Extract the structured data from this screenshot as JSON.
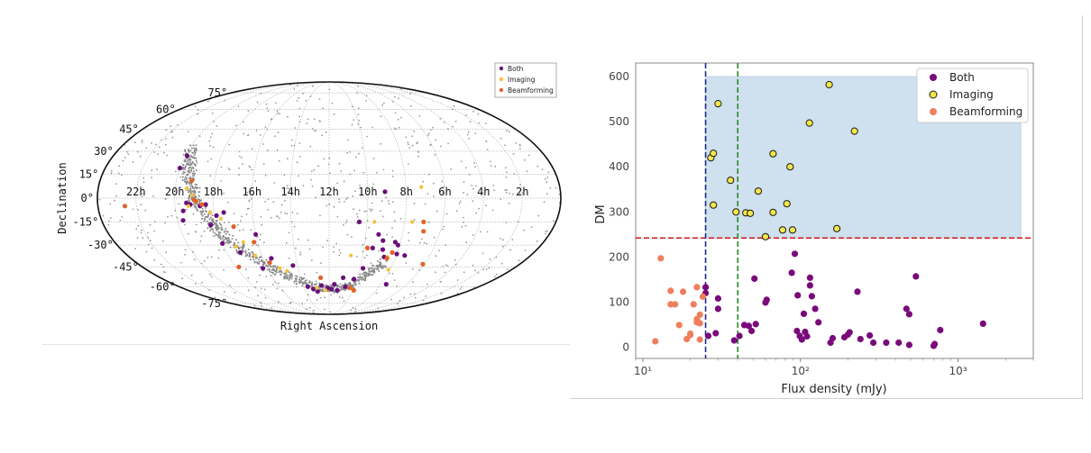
{
  "chart_data": [
    {
      "type": "scatter",
      "projection": "mollweide",
      "xlabel": "Right Ascension",
      "ylabel": "Declination",
      "ra_tick_labels": [
        "22h",
        "20h",
        "18h",
        "16h",
        "14h",
        "12h",
        "10h",
        "8h",
        "6h",
        "4h",
        "2h"
      ],
      "dec_tick_labels": [
        "75°",
        "60°",
        "45°",
        "30°",
        "15°",
        "0°",
        "-15°",
        "-30°",
        "-45°",
        "-60°",
        "-75°"
      ],
      "legend": {
        "placement": "top-right",
        "entries": [
          "Both",
          "Imaging",
          "Beamforming"
        ]
      },
      "colors": {
        "Both": "#6a0f7a",
        "Imaging": "#f2c23a",
        "Beamforming": "#e0622a",
        "background": "#9a9a9a"
      },
      "series": [
        {
          "name": "Both",
          "points": [
            [
              19.9,
              27
            ],
            [
              20.0,
              19
            ],
            [
              19.4,
              -3
            ],
            [
              19.6,
              -8
            ],
            [
              18.4,
              -4
            ],
            [
              18.3,
              -17
            ],
            [
              17.9,
              -11
            ],
            [
              17.5,
              -9
            ],
            [
              17.2,
              -35
            ],
            [
              16.0,
              -23
            ],
            [
              15.5,
              -39
            ],
            [
              14.3,
              -44
            ],
            [
              13.7,
              -60
            ],
            [
              13.0,
              -64
            ],
            [
              11.6,
              -58
            ],
            [
              11.3,
              -63
            ],
            [
              10.7,
              -60
            ],
            [
              10.2,
              -54
            ],
            [
              9.8,
              -46
            ],
            [
              9.5,
              -32
            ],
            [
              9.3,
              -23
            ],
            [
              8.9,
              -33
            ],
            [
              8.7,
              -38
            ],
            [
              8.1,
              -30
            ],
            [
              8.0,
              -36
            ],
            [
              7.6,
              -58
            ],
            [
              7.5,
              -37
            ],
            [
              9.1,
              4
            ],
            [
              10.4,
              -15
            ],
            [
              19.2,
              -4
            ],
            [
              18.0,
              -29
            ],
            [
              12.6,
              -59
            ],
            [
              11.0,
              -53
            ],
            [
              8.3,
              -28
            ],
            [
              19.7,
              -14
            ],
            [
              18.7,
              -5
            ],
            [
              16.3,
              -46
            ],
            [
              13.3,
              -62
            ],
            [
              12.1,
              -61
            ],
            [
              11.8,
              -62
            ],
            [
              9.0,
              -27
            ]
          ]
        },
        {
          "name": "Imaging",
          "points": [
            [
              19.4,
              6
            ],
            [
              19.1,
              2
            ],
            [
              19.3,
              -5
            ],
            [
              18.2,
              -9
            ],
            [
              17.7,
              -13
            ],
            [
              16.8,
              -28
            ],
            [
              15.2,
              -46
            ],
            [
              14.8,
              -48
            ],
            [
              13.0,
              -61
            ],
            [
              12.3,
              -63
            ],
            [
              10.7,
              -37
            ],
            [
              9.6,
              -15
            ],
            [
              8.5,
              -38
            ],
            [
              8.1,
              -47
            ],
            [
              7.2,
              7
            ],
            [
              7.6,
              -15
            ],
            [
              17.3,
              -31
            ],
            [
              16.4,
              -37
            ]
          ]
        },
        {
          "name": "Beamforming",
          "points": [
            [
              22.6,
              -5
            ],
            [
              19.2,
              11
            ],
            [
              19.0,
              -1
            ],
            [
              18.6,
              -4
            ],
            [
              17.1,
              -18
            ],
            [
              16.2,
              -28
            ],
            [
              15.7,
              -42
            ],
            [
              12.6,
              -53
            ],
            [
              10.3,
              -61
            ],
            [
              9.9,
              -63
            ],
            [
              9.8,
              -32
            ],
            [
              8.5,
              -39
            ],
            [
              8.3,
              -35
            ],
            [
              7.0,
              -15
            ],
            [
              6.9,
              -21
            ],
            [
              6.1,
              -43
            ],
            [
              18.9,
              -2
            ],
            [
              17.8,
              -45
            ]
          ]
        }
      ]
    },
    {
      "type": "scatter",
      "xlabel": "Flux density (mJy)",
      "ylabel": "DM",
      "xscale": "log",
      "xlim": [
        9,
        3000
      ],
      "ylim": [
        -25,
        630
      ],
      "x_tick_labels": [
        "10¹",
        "10²",
        "10³"
      ],
      "y_ticks": [
        0,
        100,
        200,
        300,
        400,
        500,
        600
      ],
      "legend": {
        "placement": "top-right",
        "entries": [
          "Both",
          "Imaging",
          "Beamforming"
        ]
      },
      "colors": {
        "Both": "#7a0a7a",
        "Imaging": "#f3e64a",
        "Imaging_edge": "#1a1a1a",
        "Beamforming": "#ee7f5e",
        "region": "#cfe0ee",
        "hline": "#cc2020",
        "vline_blue": "#1f2a8a",
        "vline_green": "#2a8a2a"
      },
      "shaded_region": {
        "x": [
          25,
          2500
        ],
        "y": [
          242,
          600
        ]
      },
      "hline": 242,
      "vlines": [
        25,
        40
      ],
      "series": [
        {
          "name": "Both",
          "points": [
            [
              25,
              133
            ],
            [
              25,
              120
            ],
            [
              26,
              25
            ],
            [
              29,
              31
            ],
            [
              30,
              85
            ],
            [
              30,
              108
            ],
            [
              38,
              15
            ],
            [
              41,
              25
            ],
            [
              44,
              49
            ],
            [
              47,
              47
            ],
            [
              49,
              36
            ],
            [
              51,
              152
            ],
            [
              52,
              51
            ],
            [
              61,
              105
            ],
            [
              60,
              99
            ],
            [
              92,
              207
            ],
            [
              88,
              165
            ],
            [
              96,
              115
            ],
            [
              95,
              36
            ],
            [
              99,
              25
            ],
            [
              102,
              17
            ],
            [
              105,
              74
            ],
            [
              107,
              34
            ],
            [
              110,
              24
            ],
            [
              115,
              154
            ],
            [
              115,
              137
            ],
            [
              118,
              113
            ],
            [
              124,
              85
            ],
            [
              130,
              55
            ],
            [
              155,
              10
            ],
            [
              160,
              20
            ],
            [
              205,
              33
            ],
            [
              200,
              28
            ],
            [
              190,
              22
            ],
            [
              230,
              123
            ],
            [
              240,
              18
            ],
            [
              275,
              26
            ],
            [
              290,
              10
            ],
            [
              350,
              10
            ],
            [
              420,
              10
            ],
            [
              470,
              85
            ],
            [
              490,
              73
            ],
            [
              490,
              5
            ],
            [
              540,
              157
            ],
            [
              710,
              7
            ],
            [
              700,
              3
            ],
            [
              770,
              38
            ],
            [
              1440,
              52
            ]
          ]
        },
        {
          "name": "Imaging",
          "points": [
            [
              27,
              420
            ],
            [
              28,
              430
            ],
            [
              30,
              540
            ],
            [
              28,
              315
            ],
            [
              36,
              370
            ],
            [
              39,
              300
            ],
            [
              45,
              298
            ],
            [
              48,
              297
            ],
            [
              54,
              346
            ],
            [
              60,
              245
            ],
            [
              67,
              429
            ],
            [
              67,
              299
            ],
            [
              77,
              260
            ],
            [
              82,
              318
            ],
            [
              86,
              400
            ],
            [
              89,
              260
            ],
            [
              114,
              497
            ],
            [
              152,
              582
            ],
            [
              170,
              263
            ],
            [
              220,
              479
            ]
          ]
        },
        {
          "name": "Beamforming",
          "points": [
            [
              12,
              13
            ],
            [
              13,
              197
            ],
            [
              15,
              125
            ],
            [
              15,
              95
            ],
            [
              16,
              95
            ],
            [
              17,
              49
            ],
            [
              18,
              123
            ],
            [
              19,
              18
            ],
            [
              20,
              30
            ],
            [
              20,
              27
            ],
            [
              21,
              95
            ],
            [
              22,
              133
            ],
            [
              22,
              62
            ],
            [
              22,
              55
            ],
            [
              23,
              53
            ],
            [
              23,
              72
            ],
            [
              23,
              17
            ],
            [
              24,
              112
            ]
          ]
        }
      ]
    }
  ]
}
